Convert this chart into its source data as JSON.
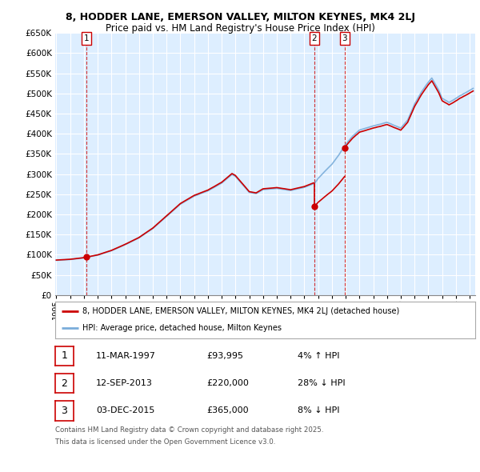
{
  "title1": "8, HODDER LANE, EMERSON VALLEY, MILTON KEYNES, MK4 2LJ",
  "title2": "Price paid vs. HM Land Registry's House Price Index (HPI)",
  "sale1_label": "11-MAR-1997",
  "sale1_price": 93995,
  "sale1_pct": "4% ↑ HPI",
  "sale2_label": "12-SEP-2013",
  "sale2_price": 220000,
  "sale2_pct": "28% ↓ HPI",
  "sale3_label": "03-DEC-2015",
  "sale3_price": 365000,
  "sale3_pct": "8% ↓ HPI",
  "legend1": "8, HODDER LANE, EMERSON VALLEY, MILTON KEYNES, MK4 2LJ (detached house)",
  "legend2": "HPI: Average price, detached house, Milton Keynes",
  "footer1": "Contains HM Land Registry data © Crown copyright and database right 2025.",
  "footer2": "This data is licensed under the Open Government Licence v3.0.",
  "line_color_sold": "#cc0000",
  "line_color_hpi": "#7aadda",
  "chart_bg": "#ddeeff",
  "background_color": "#ffffff",
  "grid_color": "#ffffff",
  "ylim_max": 650000,
  "ylim_min": 0,
  "sale1_year": 1997.19,
  "sale2_year": 2013.71,
  "sale3_year": 2015.92
}
